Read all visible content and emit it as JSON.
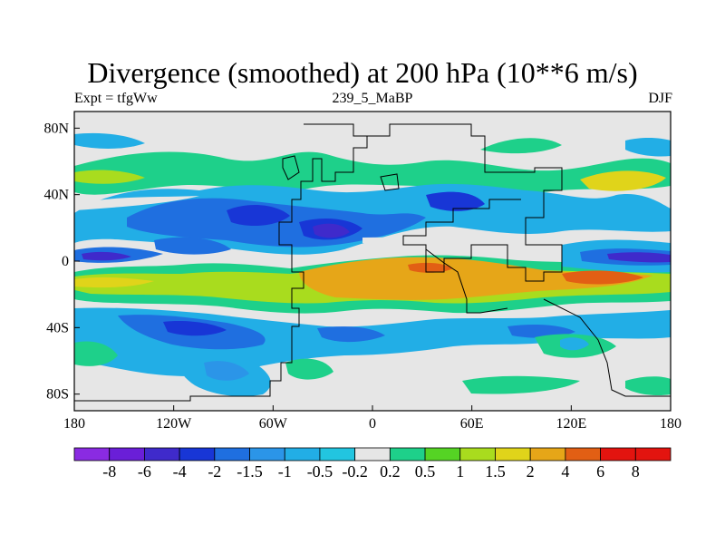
{
  "chart_data": {
    "type": "heatmap",
    "title": "Divergence (smoothed) at 200 hPa (10**6 m/s)",
    "subtitle_left": "Expt = tfgWw",
    "subtitle_center": "239_5_MaBP",
    "subtitle_right": "DJF",
    "xlim": [
      -180,
      180
    ],
    "ylim": [
      -90,
      90
    ],
    "x_ticks": [
      {
        "value": -180,
        "label": "180"
      },
      {
        "value": -120,
        "label": "120W"
      },
      {
        "value": -60,
        "label": "60W"
      },
      {
        "value": 0,
        "label": "0"
      },
      {
        "value": 60,
        "label": "60E"
      },
      {
        "value": 120,
        "label": "120E"
      },
      {
        "value": 180,
        "label": "180"
      }
    ],
    "y_ticks": [
      {
        "value": 80,
        "label": "80N"
      },
      {
        "value": 40,
        "label": "40N"
      },
      {
        "value": 0,
        "label": "0"
      },
      {
        "value": -40,
        "label": "40S"
      },
      {
        "value": -80,
        "label": "80S"
      }
    ],
    "colorbar": {
      "levels": [
        "-8",
        "-6",
        "-4",
        "-2",
        "-1.5",
        "-1",
        "-0.5",
        "-0.2",
        "0.2",
        "0.5",
        "1",
        "1.5",
        "2",
        "4",
        "6",
        "8"
      ],
      "colors": [
        "#8a2be2",
        "#6a1fd8",
        "#3f2acb",
        "#1836d6",
        "#1f6fe0",
        "#2b95e8",
        "#22aee6",
        "#22c5e0",
        "#e6e6e6",
        "#1ed08a",
        "#55d424",
        "#a9dc1e",
        "#e0d41a",
        "#e6a618",
        "#e25f14",
        "#e3140f",
        "#e3140f"
      ]
    },
    "features": [
      {
        "name": "nh-midlat-positive-band",
        "kind": "positive",
        "lon": [
          -180,
          180
        ],
        "lat": [
          40,
          55
        ],
        "level": "1"
      },
      {
        "name": "nh-subtropical-negative-band",
        "kind": "negative",
        "lon": [
          -150,
          60
        ],
        "lat": [
          15,
          35
        ],
        "level": "-2"
      },
      {
        "name": "tropical-positive-band",
        "kind": "positive",
        "lon": [
          -170,
          180
        ],
        "lat": [
          -25,
          -5
        ],
        "level": "4"
      },
      {
        "name": "sh-midlat-negative-band",
        "kind": "negative",
        "lon": [
          -180,
          180
        ],
        "lat": [
          -60,
          -30
        ],
        "level": "-1"
      },
      {
        "name": "equatorial-pacific-negative",
        "kind": "negative",
        "lon": [
          130,
          180
        ],
        "lat": [
          -3,
          5
        ],
        "level": "-4"
      }
    ]
  }
}
